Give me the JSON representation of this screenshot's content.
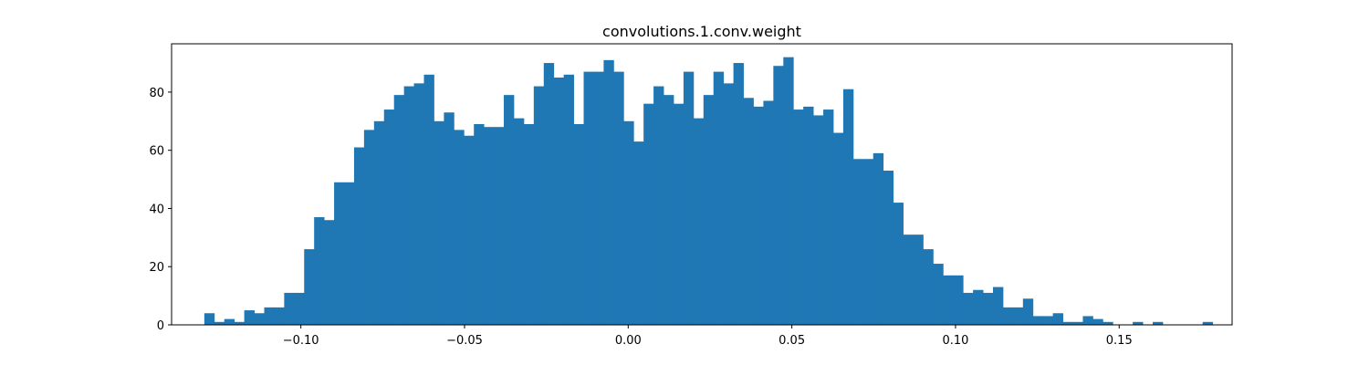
{
  "chart_data": {
    "type": "bar",
    "title": "convolutions.1.conv.weight",
    "xlabel": "",
    "ylabel": "",
    "xlim": [
      -0.1395,
      0.1845
    ],
    "ylim": [
      0,
      96.6
    ],
    "grid": false,
    "legend": "none",
    "bar_color": "#1f77b4",
    "bin_start": -0.1295,
    "bin_width": 0.00305,
    "values": [
      4,
      1,
      2,
      1,
      5,
      4,
      6,
      6,
      11,
      11,
      26,
      37,
      36,
      49,
      49,
      61,
      67,
      70,
      74,
      79,
      82,
      83,
      86,
      70,
      73,
      67,
      65,
      69,
      68,
      68,
      79,
      71,
      69,
      82,
      90,
      85,
      86,
      69,
      87,
      87,
      91,
      87,
      70,
      63,
      76,
      82,
      79,
      76,
      87,
      71,
      79,
      87,
      83,
      90,
      78,
      75,
      77,
      89,
      92,
      74,
      75,
      72,
      74,
      66,
      81,
      57,
      57,
      59,
      53,
      42,
      31,
      31,
      26,
      21,
      17,
      17,
      11,
      12,
      11,
      13,
      6,
      6,
      9,
      3,
      3,
      4,
      1,
      1,
      3,
      2,
      1,
      0,
      0,
      1,
      0,
      1,
      0,
      0,
      0,
      0,
      1
    ],
    "x_ticks": [
      {
        "value": -0.1,
        "label": "−0.10"
      },
      {
        "value": -0.05,
        "label": "−0.05"
      },
      {
        "value": 0.0,
        "label": "0.00"
      },
      {
        "value": 0.05,
        "label": "0.05"
      },
      {
        "value": 0.1,
        "label": "0.10"
      },
      {
        "value": 0.15,
        "label": "0.15"
      }
    ],
    "y_ticks": [
      {
        "value": 0,
        "label": "0"
      },
      {
        "value": 20,
        "label": "20"
      },
      {
        "value": 40,
        "label": "40"
      },
      {
        "value": 60,
        "label": "60"
      },
      {
        "value": 80,
        "label": "80"
      }
    ]
  }
}
